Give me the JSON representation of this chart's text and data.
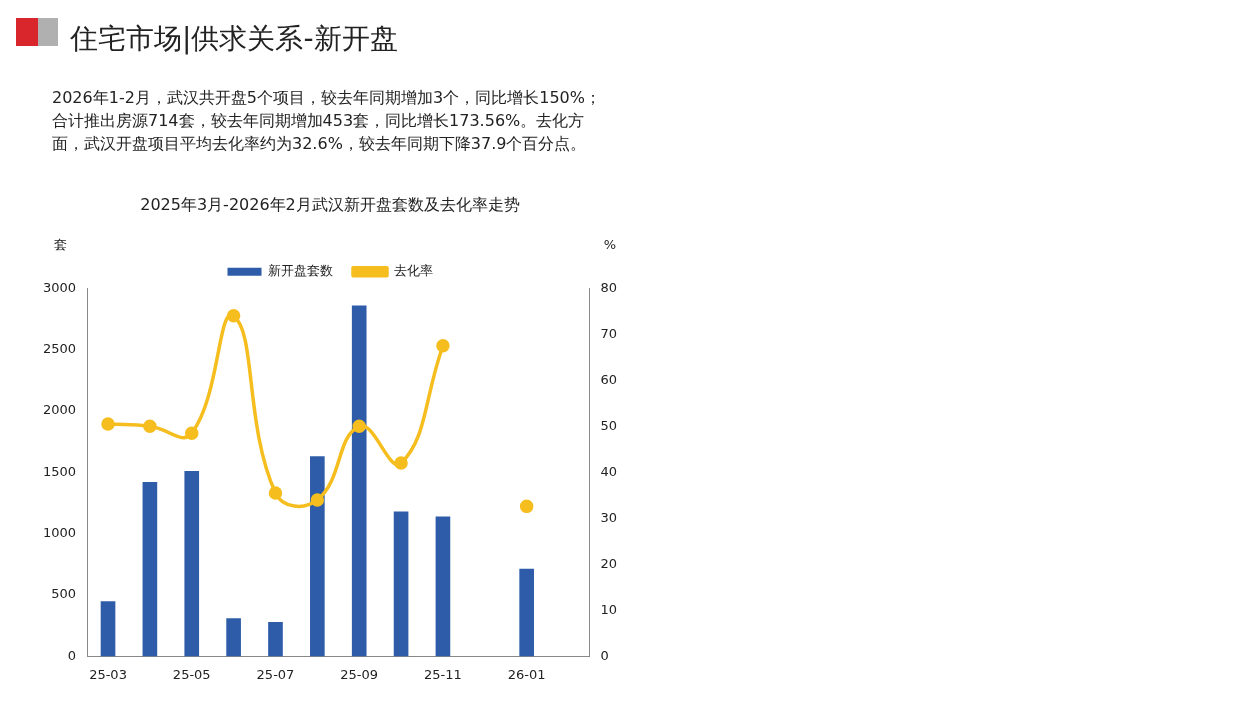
{
  "chart_data": {
    "type": "bar",
    "title": "2025年3月-2026年2月武汉新开盘套数及去化率走势",
    "annotations": [
      "住宅市场|供求关系-新开盘",
      "2026年1-2月，武汉共开盘5个项目，较去年同期增加3个，同比增长150%；合计推出房源714套，较去年同期增加453套，同比增长173.56%。去化方面，武汉开盘项目平均去化率约为32.6%，较去年同期下降37.9个百分点。"
    ],
    "ylabel": "套",
    "y2label": "%",
    "categories": [
      "25-03",
      null,
      "25-05",
      null,
      "25-07",
      null,
      "25-09",
      null,
      "25-11",
      null,
      "26-01",
      null
    ],
    "series": [
      {
        "name": "新开盘套数",
        "color": "#2e5ca8",
        "values": [
          450,
          1420,
          1510,
          310,
          280,
          1630,
          2860,
          1180,
          1140,
          null,
          714,
          null
        ]
      },
      {
        "name": "去化率",
        "type": "line",
        "axis": "y2",
        "color": "#f5be1e",
        "marker": "circle",
        "values": [
          50.5,
          50,
          48.5,
          74,
          35.5,
          34,
          50,
          42,
          67.5,
          null,
          32.6,
          null
        ]
      }
    ],
    "ylim": [
      0,
      3000
    ],
    "yticks": [
      0,
      500,
      1000,
      1500,
      2000,
      2500,
      3000
    ],
    "y2lim": [
      0,
      80
    ],
    "y2ticks": [
      0,
      10,
      20,
      30,
      40,
      50,
      60,
      70,
      80
    ],
    "grid": false,
    "legend": "top"
  }
}
